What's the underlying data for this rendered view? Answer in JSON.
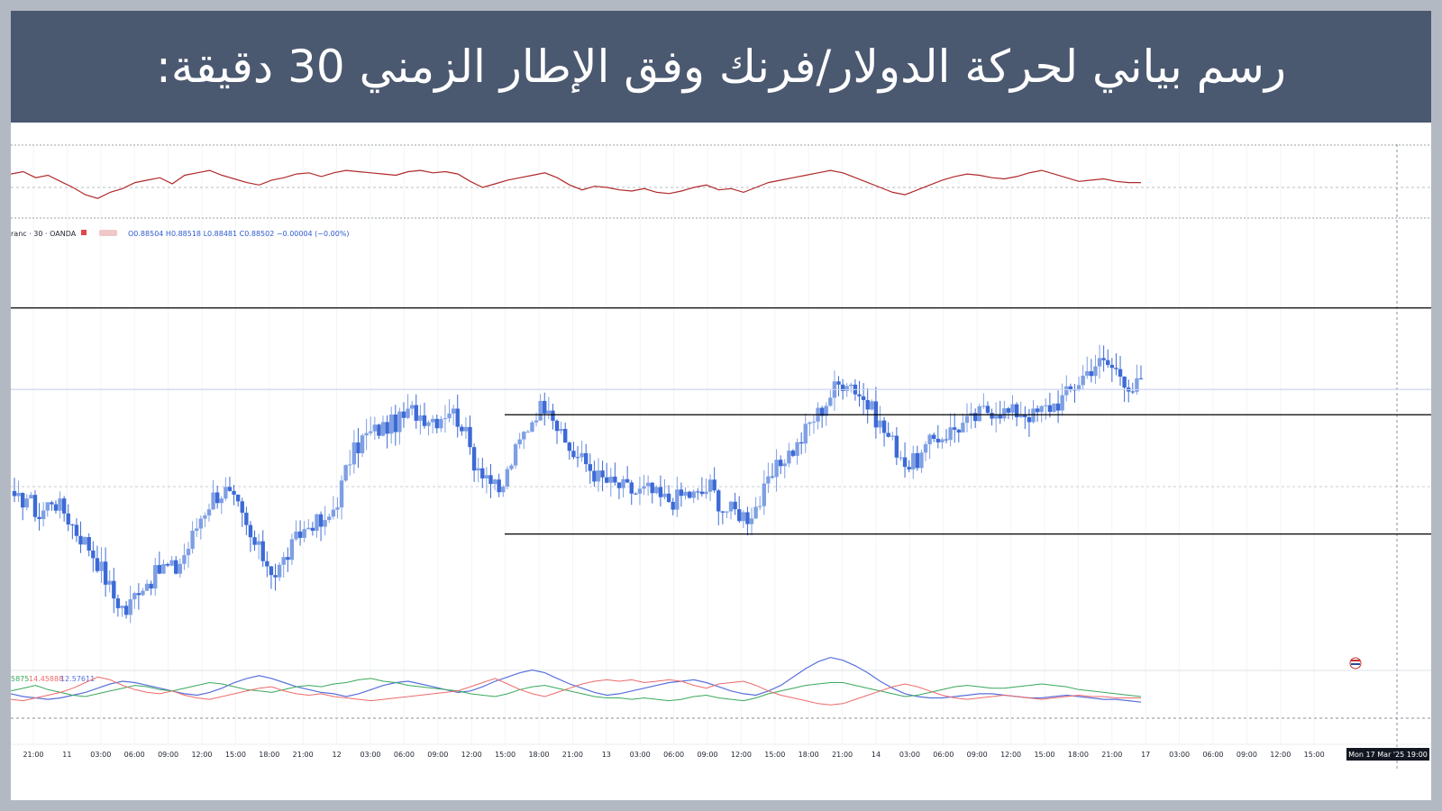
{
  "title": "رسم بياني لحركة الدولار/فرنك وفق الإطار الزمني 30 دقيقة:",
  "symbol_legend": {
    "symbol": "ranc · 30 · OANDA",
    "ohlc": "O0.88504  H0.88518  L0.88481  C0.88502  −0.00004 (−0.00%)"
  },
  "bottom_indicator_legend": {
    "v1": "5875",
    "v2": "14.45888",
    "v3": "12.57611"
  },
  "time_axis_current": "Mon 17 Mar '25   19:00",
  "colors": {
    "bull_candle": "#7f9fe3",
    "bear_candle": "#3c6ad6",
    "rsi_line": "#b02a2a",
    "adx_line": "#5870dc",
    "plus_di": "#3aa85a",
    "minus_di": "#ee6a6a",
    "title_bg": "#4a5870"
  },
  "chart_data": {
    "type": "candlestick",
    "bar_interval": "30m",
    "x_tick_labels": [
      "21:00",
      "11",
      "03:00",
      "06:00",
      "09:00",
      "12:00",
      "15:00",
      "18:00",
      "21:00",
      "12",
      "03:00",
      "06:00",
      "09:00",
      "12:00",
      "15:00",
      "18:00",
      "21:00",
      "13",
      "03:00",
      "06:00",
      "09:00",
      "12:00",
      "15:00",
      "18:00",
      "21:00",
      "14",
      "03:00",
      "06:00",
      "09:00",
      "12:00",
      "15:00",
      "18:00",
      "21:00",
      "17",
      "03:00",
      "06:00",
      "09:00",
      "12:00",
      "15:00"
    ],
    "close_path": [
      0.8794,
      0.88,
      0.8784,
      0.8798,
      0.8788,
      0.8772,
      0.876,
      0.8742,
      0.872,
      0.8708,
      0.8728,
      0.8734,
      0.8744,
      0.8742,
      0.876,
      0.8784,
      0.88,
      0.8804,
      0.879,
      0.8766,
      0.8752,
      0.8738,
      0.8754,
      0.877,
      0.878,
      0.8776,
      0.8798,
      0.883,
      0.8846,
      0.8852,
      0.8856,
      0.886,
      0.8868,
      0.8864,
      0.8862,
      0.887,
      0.8858,
      0.8828,
      0.8818,
      0.88,
      0.8828,
      0.885,
      0.8868,
      0.8876,
      0.8846,
      0.8834,
      0.8826,
      0.8815,
      0.881,
      0.8807,
      0.8803,
      0.8805,
      0.8798,
      0.8797,
      0.8802,
      0.88,
      0.8808,
      0.879,
      0.8788,
      0.8784,
      0.8796,
      0.8816,
      0.8832,
      0.884,
      0.8858,
      0.887,
      0.8886,
      0.8894,
      0.8882,
      0.8868,
      0.8852,
      0.8838,
      0.8824,
      0.8832,
      0.8846,
      0.885,
      0.8856,
      0.886,
      0.8868,
      0.887,
      0.8866,
      0.8868,
      0.8864,
      0.887,
      0.8875,
      0.8884,
      0.8896,
      0.8906,
      0.8905,
      0.8898,
      0.8886,
      0.8892
    ],
    "resistance_levels": [
      0.895,
      0.8865
    ],
    "support_level": 0.877,
    "current_price_line": 0.8885,
    "ylim": [
      0.867,
      0.899
    ],
    "rsi_path": [
      61,
      63,
      58,
      60,
      55,
      50,
      44,
      41,
      46,
      49,
      54,
      56,
      58,
      53,
      60,
      62,
      64,
      60,
      57,
      54,
      52,
      56,
      58,
      61,
      62,
      59,
      62,
      64,
      63,
      62,
      61,
      60,
      63,
      64,
      62,
      63,
      61,
      55,
      50,
      53,
      56,
      58,
      60,
      62,
      58,
      52,
      48,
      51,
      50,
      48,
      47,
      49,
      46,
      45,
      47,
      50,
      52,
      48,
      49,
      46,
      50,
      54,
      56,
      58,
      60,
      62,
      64,
      62,
      58,
      54,
      50,
      46,
      44,
      48,
      52,
      56,
      59,
      61,
      60,
      58,
      57,
      59,
      62,
      64,
      61,
      58,
      55,
      56,
      57,
      55,
      54,
      54
    ],
    "adx_path": [
      22,
      20,
      19,
      18,
      19,
      21,
      23,
      26,
      29,
      31,
      30,
      28,
      26,
      24,
      22,
      21,
      23,
      26,
      30,
      33,
      35,
      33,
      30,
      27,
      25,
      23,
      22,
      20,
      22,
      25,
      28,
      30,
      31,
      29,
      27,
      25,
      23,
      24,
      27,
      31,
      34,
      37,
      39,
      37,
      33,
      29,
      26,
      23,
      21,
      22,
      24,
      26,
      28,
      30,
      31,
      32,
      30,
      27,
      24,
      22,
      21,
      24,
      28,
      34,
      40,
      45,
      48,
      46,
      42,
      37,
      31,
      26,
      22,
      20,
      19,
      19,
      20,
      21,
      22,
      22,
      21,
      20,
      19,
      19,
      20,
      21,
      20,
      19,
      18,
      18,
      17,
      16
    ],
    "plus_di_path": [
      24,
      26,
      28,
      25,
      23,
      21,
      20,
      22,
      24,
      26,
      28,
      27,
      25,
      24,
      26,
      28,
      30,
      29,
      27,
      25,
      24,
      23,
      25,
      27,
      28,
      27,
      29,
      30,
      32,
      33,
      31,
      30,
      28,
      27,
      26,
      25,
      24,
      22,
      21,
      20,
      22,
      25,
      27,
      28,
      26,
      24,
      22,
      20,
      19,
      19,
      18,
      19,
      18,
      17,
      18,
      20,
      21,
      19,
      18,
      17,
      19,
      22,
      24,
      26,
      28,
      29,
      30,
      30,
      28,
      26,
      24,
      22,
      20,
      21,
      23,
      25,
      27,
      28,
      27,
      26,
      26,
      27,
      28,
      29,
      28,
      27,
      25,
      24,
      23,
      22,
      21,
      20
    ],
    "minus_di_path": [
      18,
      17,
      19,
      21,
      23,
      26,
      30,
      34,
      32,
      28,
      25,
      23,
      22,
      24,
      21,
      19,
      18,
      20,
      22,
      24,
      26,
      27,
      24,
      22,
      21,
      22,
      20,
      19,
      18,
      17,
      18,
      19,
      20,
      21,
      22,
      23,
      24,
      27,
      30,
      33,
      29,
      25,
      22,
      20,
      23,
      26,
      29,
      31,
      32,
      31,
      32,
      30,
      31,
      32,
      31,
      28,
      26,
      29,
      30,
      31,
      28,
      24,
      21,
      19,
      17,
      15,
      14,
      15,
      18,
      21,
      24,
      27,
      29,
      27,
      24,
      21,
      19,
      18,
      19,
      20,
      21,
      20,
      19,
      18,
      19,
      20,
      21,
      20,
      20,
      19,
      19,
      19
    ]
  }
}
